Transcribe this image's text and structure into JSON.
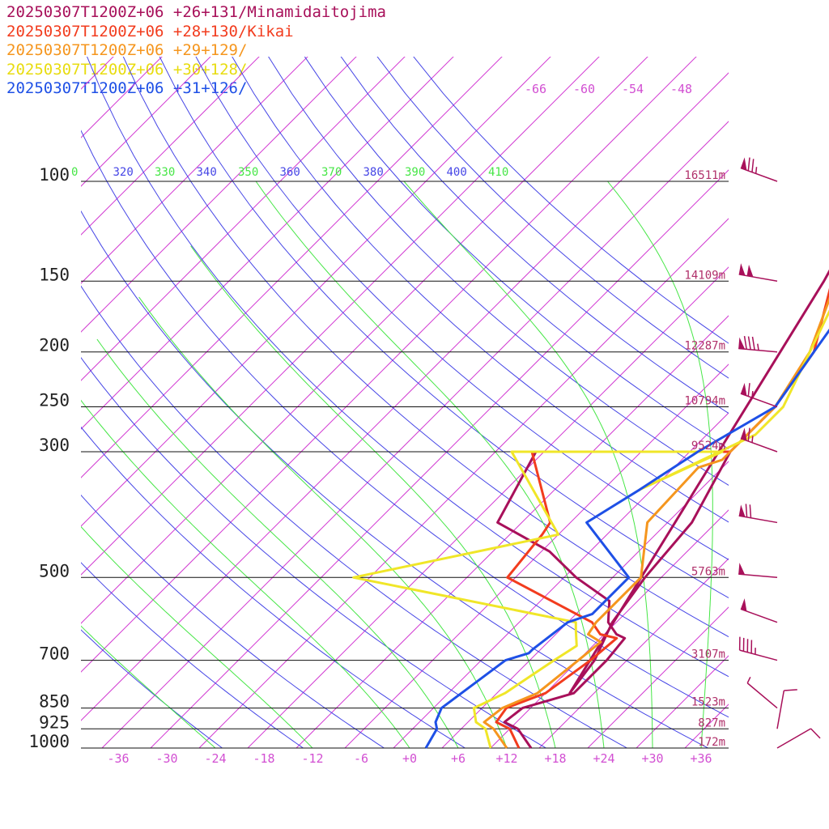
{
  "chart_data": {
    "type": "line",
    "x_ticks": [
      "-36",
      "-30",
      "-24",
      "-18",
      "-12",
      "-6",
      "+0",
      "+6",
      "+12",
      "+18",
      "+24",
      "+30",
      "+36"
    ],
    "pressure_levels": [
      {
        "p": 100,
        "label": "100",
        "height": "16511m"
      },
      {
        "p": 150,
        "label": "150",
        "height": "14109m"
      },
      {
        "p": 200,
        "label": "200",
        "height": "12287m"
      },
      {
        "p": 250,
        "label": "250",
        "height": "10794m"
      },
      {
        "p": 300,
        "label": "300",
        "height": "9524m"
      },
      {
        "p": 500,
        "label": "500",
        "height": "5763m"
      },
      {
        "p": 700,
        "label": "700",
        "height": "3107m"
      },
      {
        "p": 850,
        "label": "850",
        "height": "1523m"
      },
      {
        "p": 925,
        "label": "925",
        "height": "827m"
      },
      {
        "p": 1000,
        "label": "1000",
        "height": "172m"
      }
    ],
    "theta_labels": [
      "0",
      "320",
      "330",
      "340",
      "350",
      "360",
      "370",
      "380",
      "390",
      "400",
      "410"
    ],
    "isotherm_top_labels": [
      "-66",
      "-60",
      "-54",
      "-48"
    ],
    "series": [
      {
        "name": "20250307T1200Z+06 +26+131/Minamidaitojima",
        "color": "#a8105a",
        "profile": [
          [
            1000,
            15
          ],
          [
            925,
            11
          ],
          [
            900,
            8.5
          ],
          [
            850,
            9
          ],
          [
            800,
            13.5
          ],
          [
            700,
            13.5
          ],
          [
            640,
            13
          ],
          [
            630,
            11.5
          ],
          [
            600,
            9
          ],
          [
            550,
            6.5
          ],
          [
            500,
            -0.5
          ],
          [
            450,
            -7
          ],
          [
            400,
            -17
          ],
          [
            300,
            -21
          ],
          [
            300,
            3
          ],
          [
            400,
            7
          ],
          [
            500,
            8
          ],
          [
            600,
            9.5
          ],
          [
            700,
            12
          ],
          [
            800,
            13
          ],
          [
            150,
            -6.5
          ],
          [
            125,
            -9
          ],
          [
            100,
            -6
          ],
          [
            80,
            1.5
          ],
          [
            60,
            10.5
          ]
        ]
      },
      {
        "name": "20250307T1200Z+06 +28+130/Kikai",
        "color": "#f23c1e",
        "profile": [
          [
            1000,
            13.5
          ],
          [
            925,
            10
          ],
          [
            900,
            7.5
          ],
          [
            850,
            7
          ],
          [
            800,
            10
          ],
          [
            700,
            11.5
          ],
          [
            640,
            12
          ],
          [
            630,
            9.5
          ],
          [
            600,
            7
          ],
          [
            500,
            -9
          ],
          [
            420,
            -10
          ],
          [
            400,
            -10.5
          ],
          [
            300,
            -21.5
          ],
          [
            300,
            3
          ],
          [
            250,
            3
          ],
          [
            200,
            1
          ],
          [
            150,
            -5.5
          ],
          [
            130,
            -8
          ],
          [
            100,
            -4.5
          ],
          [
            80,
            0.5
          ],
          [
            60,
            11
          ]
        ]
      },
      {
        "name": "20250307T1200Z+06 +29+129/",
        "color": "#f5961e",
        "profile": [
          [
            1000,
            12
          ],
          [
            925,
            8
          ],
          [
            900,
            6
          ],
          [
            850,
            6.5
          ],
          [
            800,
            9
          ],
          [
            700,
            10
          ],
          [
            650,
            10.5
          ],
          [
            630,
            8
          ],
          [
            600,
            7.5
          ],
          [
            500,
            7.5
          ],
          [
            400,
            1.5
          ],
          [
            320,
            1
          ],
          [
            310,
            3
          ],
          [
            250,
            3
          ],
          [
            200,
            0.5
          ],
          [
            150,
            -5
          ],
          [
            130,
            -8
          ],
          [
            100,
            -3
          ],
          [
            80,
            4
          ],
          [
            60,
            9
          ]
        ]
      },
      {
        "name": "20250307T1200Z+06 +30+128/",
        "color": "#f0e628",
        "profile": [
          [
            1000,
            10
          ],
          [
            925,
            7
          ],
          [
            900,
            5
          ],
          [
            850,
            3
          ],
          [
            800,
            5
          ],
          [
            700,
            7
          ],
          [
            660,
            8
          ],
          [
            620,
            6
          ],
          [
            600,
            5
          ],
          [
            500,
            -28
          ],
          [
            420,
            -8
          ],
          [
            300,
            -24
          ],
          [
            300,
            2
          ],
          [
            350,
            -3.5
          ],
          [
            280,
            4
          ],
          [
            250,
            4
          ],
          [
            200,
            0.5
          ],
          [
            150,
            -4
          ],
          [
            130,
            -6
          ],
          [
            100,
            -1
          ],
          [
            60,
            11
          ],
          [
            50,
            14
          ]
        ]
      },
      {
        "name": "20250307T1200Z+06 +31+126/",
        "color": "#1e50e6",
        "profile": [
          [
            1000,
            2
          ],
          [
            925,
            1
          ],
          [
            900,
            0
          ],
          [
            850,
            -1
          ],
          [
            700,
            1
          ],
          [
            680,
            3
          ],
          [
            670,
            3
          ],
          [
            600,
            4
          ],
          [
            580,
            6
          ],
          [
            500,
            6
          ],
          [
            400,
            -6
          ],
          [
            350,
            -3.5
          ],
          [
            300,
            -1
          ],
          [
            250,
            3
          ],
          [
            200,
            1
          ],
          [
            150,
            -1.5
          ],
          [
            125,
            -1.5
          ],
          [
            100,
            4
          ],
          [
            80,
            13
          ],
          [
            60,
            20
          ]
        ]
      }
    ],
    "wind_barbs": [
      {
        "p": 100,
        "dir": 290,
        "kt": 75
      },
      {
        "p": 150,
        "dir": 280,
        "kt": 100
      },
      {
        "p": 200,
        "dir": 275,
        "kt": 85
      },
      {
        "p": 250,
        "dir": 290,
        "kt": 65
      },
      {
        "p": 300,
        "dir": 290,
        "kt": 65
      },
      {
        "p": 400,
        "dir": 280,
        "kt": 70
      },
      {
        "p": 500,
        "dir": 275,
        "kt": 50
      },
      {
        "p": 600,
        "dir": 290,
        "kt": 50
      },
      {
        "p": 700,
        "dir": 285,
        "kt": 45
      },
      {
        "p": 850,
        "dir": 310,
        "kt": 5
      },
      {
        "p": 925,
        "dir": 10,
        "kt": 10
      },
      {
        "p": 1000,
        "dir": 60,
        "kt": 10
      }
    ]
  }
}
